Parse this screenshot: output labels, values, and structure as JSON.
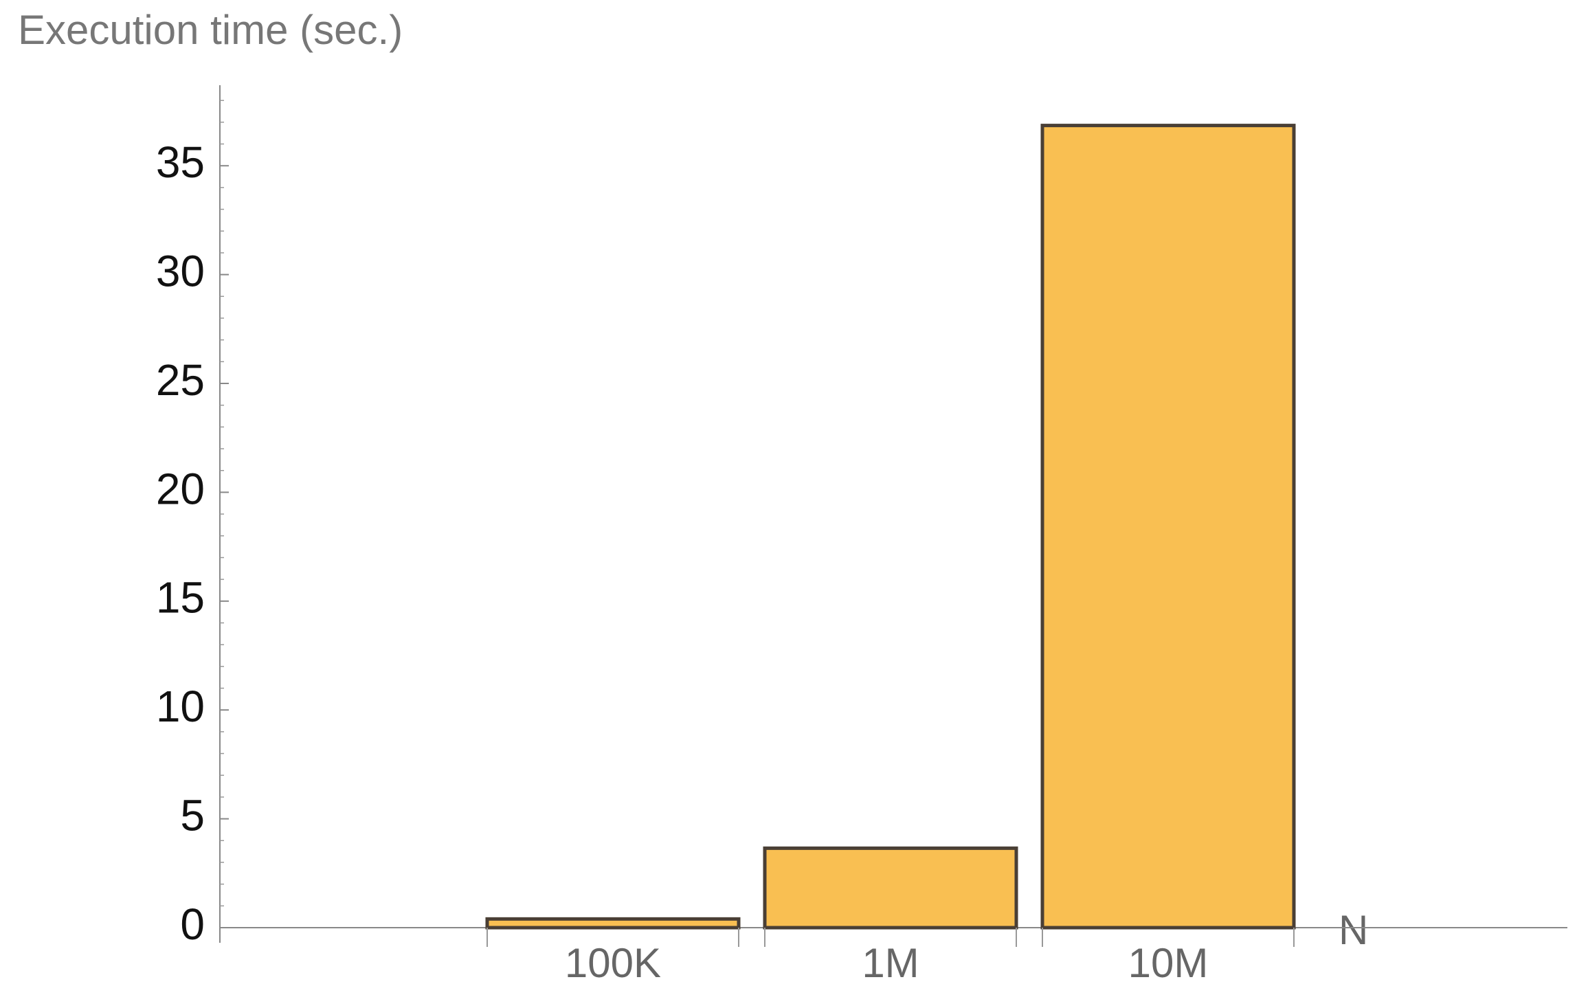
{
  "chart_data": {
    "type": "bar",
    "ylabel": "Execution time (sec.)",
    "xlabel": "N",
    "categories": [
      "100K",
      "1M",
      "10M"
    ],
    "values": [
      0.4,
      3.65,
      36.85
    ],
    "color": "#f9bf52",
    "ylim": [
      0,
      38.7
    ],
    "yticks": [
      0,
      5,
      10,
      15,
      20,
      25,
      30,
      35
    ]
  }
}
